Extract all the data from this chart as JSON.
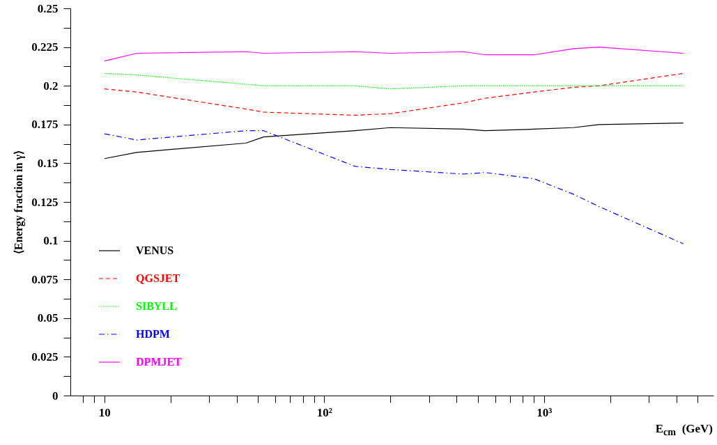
{
  "chart_data": {
    "type": "line",
    "xlabel": "E$_{cm}$  (GeV)",
    "ylabel": "⟨Energy fraction in γ⟩",
    "log": "x",
    "legend": "bottom left",
    "grid": false,
    "xlim": [
      7,
      5900
    ],
    "ylim": [
      0,
      0.25
    ],
    "xticks": [
      {
        "value": 8,
        "label": null
      },
      {
        "value": 9,
        "label": null
      },
      10,
      {
        "value": 20,
        "label": null
      },
      {
        "value": 30,
        "label": null
      },
      {
        "value": 40,
        "label": null
      },
      {
        "value": 50,
        "label": null
      },
      {
        "value": 60,
        "label": null
      },
      {
        "value": 70,
        "label": null
      },
      {
        "value": 80,
        "label": null
      },
      {
        "value": 90,
        "label": null
      },
      {
        "value": 100,
        "label": "10²"
      },
      {
        "value": 200,
        "label": null
      },
      {
        "value": 300,
        "label": null
      },
      {
        "value": 400,
        "label": null
      },
      {
        "value": 500,
        "label": null
      },
      {
        "value": 600,
        "label": null
      },
      {
        "value": 700,
        "label": null
      },
      {
        "value": 800,
        "label": null
      },
      {
        "value": 900,
        "label": null
      },
      {
        "value": 1000,
        "label": "10³"
      },
      {
        "value": 2000,
        "label": null
      },
      {
        "value": 3000,
        "label": null
      },
      {
        "value": 4000,
        "label": null
      },
      {
        "value": 5000,
        "label": null
      }
    ],
    "yticks": [
      0,
      {
        "value": 0.0125,
        "label": null
      },
      0.025,
      {
        "value": 0.0375,
        "label": null
      },
      0.05,
      {
        "value": 0.0625,
        "label": null
      },
      0.075,
      {
        "value": 0.0875,
        "label": null
      },
      0.1,
      {
        "value": 0.1125,
        "label": null
      },
      0.125,
      {
        "value": 0.1375,
        "label": null
      },
      0.15,
      {
        "value": 0.1625,
        "label": null
      },
      0.175,
      {
        "value": 0.1875,
        "label": null
      },
      0.2,
      {
        "value": 0.2125,
        "label": null
      },
      0.225,
      {
        "value": 0.2375,
        "label": null
      },
      0.25
    ],
    "x": [
      10,
      14,
      44,
      53,
      138,
      200,
      430,
      540,
      900,
      1360,
      1780,
      4300
    ],
    "series": [
      {
        "name": "VENUS",
        "color": "#000000",
        "line_style": "solid",
        "values": [
          0.153,
          0.157,
          0.163,
          0.167,
          0.171,
          0.173,
          0.172,
          0.171,
          0.172,
          0.173,
          0.175,
          0.176
        ]
      },
      {
        "name": "QGSJET",
        "color": "#ff0000",
        "line_style": "dashed",
        "values": [
          0.198,
          0.196,
          0.185,
          0.183,
          0.181,
          0.182,
          0.189,
          0.192,
          0.196,
          0.199,
          0.2,
          0.208
        ]
      },
      {
        "name": "SIBYLL",
        "color": "#00ff00",
        "line_style": "dotted",
        "values": [
          0.208,
          0.207,
          0.201,
          0.2,
          0.2,
          0.198,
          0.2,
          0.2,
          0.2,
          0.2,
          0.2,
          0.2
        ]
      },
      {
        "name": "HDPM",
        "color": "#0000ff",
        "line_style": "dashdot",
        "values": [
          0.169,
          0.165,
          0.171,
          0.171,
          0.148,
          0.146,
          0.143,
          0.144,
          0.14,
          0.13,
          0.122,
          0.098
        ]
      },
      {
        "name": "DPMJET",
        "color": "#ff00ff",
        "line_style": "solid",
        "values": [
          0.216,
          0.221,
          0.222,
          0.221,
          0.222,
          0.221,
          0.222,
          0.22,
          0.22,
          0.224,
          0.225,
          0.221
        ]
      }
    ]
  }
}
